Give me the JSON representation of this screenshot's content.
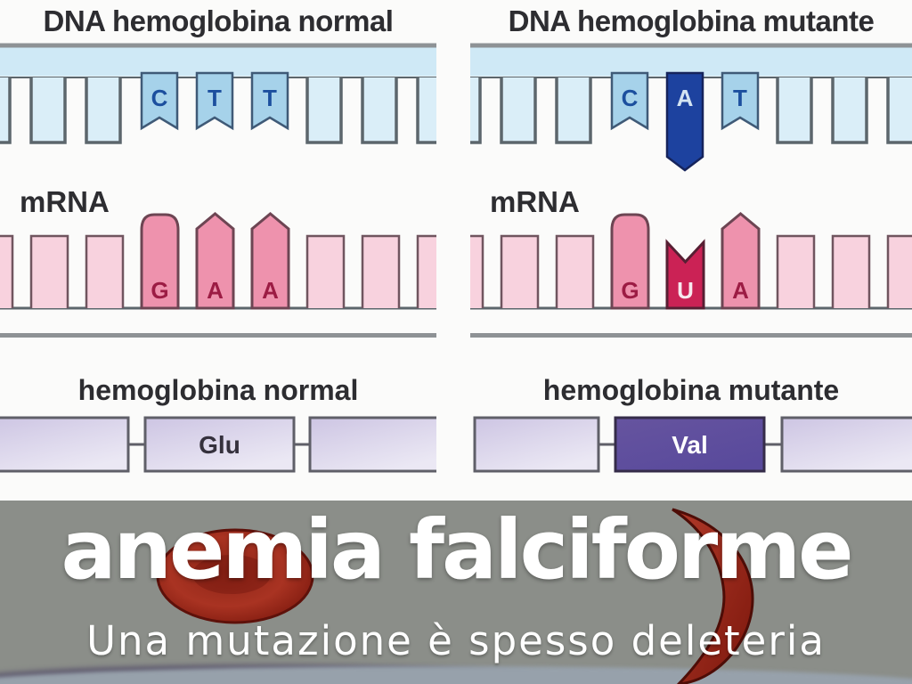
{
  "dna_normal": {
    "title": "DNA hemoglobina normal",
    "bases": [
      {
        "letter": "C",
        "mutant": false
      },
      {
        "letter": "T",
        "mutant": false
      },
      {
        "letter": "T",
        "mutant": false
      }
    ]
  },
  "dna_mutant": {
    "title": "DNA hemoglobina mutante",
    "bases": [
      {
        "letter": "C",
        "mutant": false
      },
      {
        "letter": "A",
        "mutant": true
      },
      {
        "letter": "T",
        "mutant": false
      }
    ]
  },
  "mrna_normal": {
    "label": "mRNA",
    "bases": [
      {
        "letter": "G",
        "shape": "round",
        "mutant": false
      },
      {
        "letter": "A",
        "shape": "point",
        "mutant": false
      },
      {
        "letter": "A",
        "shape": "point",
        "mutant": false
      }
    ]
  },
  "mrna_mutant": {
    "label": "mRNA",
    "bases": [
      {
        "letter": "G",
        "shape": "round",
        "mutant": false
      },
      {
        "letter": "U",
        "shape": "notch",
        "mutant": true
      },
      {
        "letter": "A",
        "shape": "point",
        "mutant": false
      }
    ]
  },
  "protein_normal": {
    "title": "hemoglobina normal",
    "amino_acid": "Glu",
    "mutant": false
  },
  "protein_mutant": {
    "title": "hemoglobina mutante",
    "amino_acid": "Val",
    "mutant": true
  },
  "banner": {
    "title": "anemia falciforme",
    "subtitle": "Una mutazione è spesso deleteria"
  },
  "colors": {
    "background": "#fbfbfa",
    "strand_line": "#8e9295",
    "dna_band": "#cfe9f6",
    "outline_dark": "#5c666c",
    "tooth_fill": "#daeef8",
    "base_fill": "#a6d2ea",
    "base_outline": "#3f5a77",
    "base_letter": "#1c4f9e",
    "base_mutant_fill": "#1d429f",
    "base_mutant_outline": "#16245c",
    "base_mutant_letter": "#d4e4f2",
    "mrna_rect": "#f8d2de",
    "mrna_outline": "#70555f",
    "pillar_fill": "#ee92ad",
    "pillar_outline": "#6d4553",
    "pillar_letter": "#9c1c44",
    "u_fill": "#cb2255",
    "u_outline": "#571f33",
    "u_letter": "#f7e8ee",
    "protein_box_outline": "#5f5f68",
    "mutant_box_outline": "#352c49",
    "glu_text": "#35313d",
    "val_text": "#ffffff",
    "divider": "#8e9295",
    "banner_bg": "#8b8e89",
    "banner_text": "#ffffff",
    "rbc_red": "#a93322",
    "rbc_dark": "#5e110a",
    "sickle_red": "#b23a2a",
    "sickle_dark": "#4e0d07"
  }
}
